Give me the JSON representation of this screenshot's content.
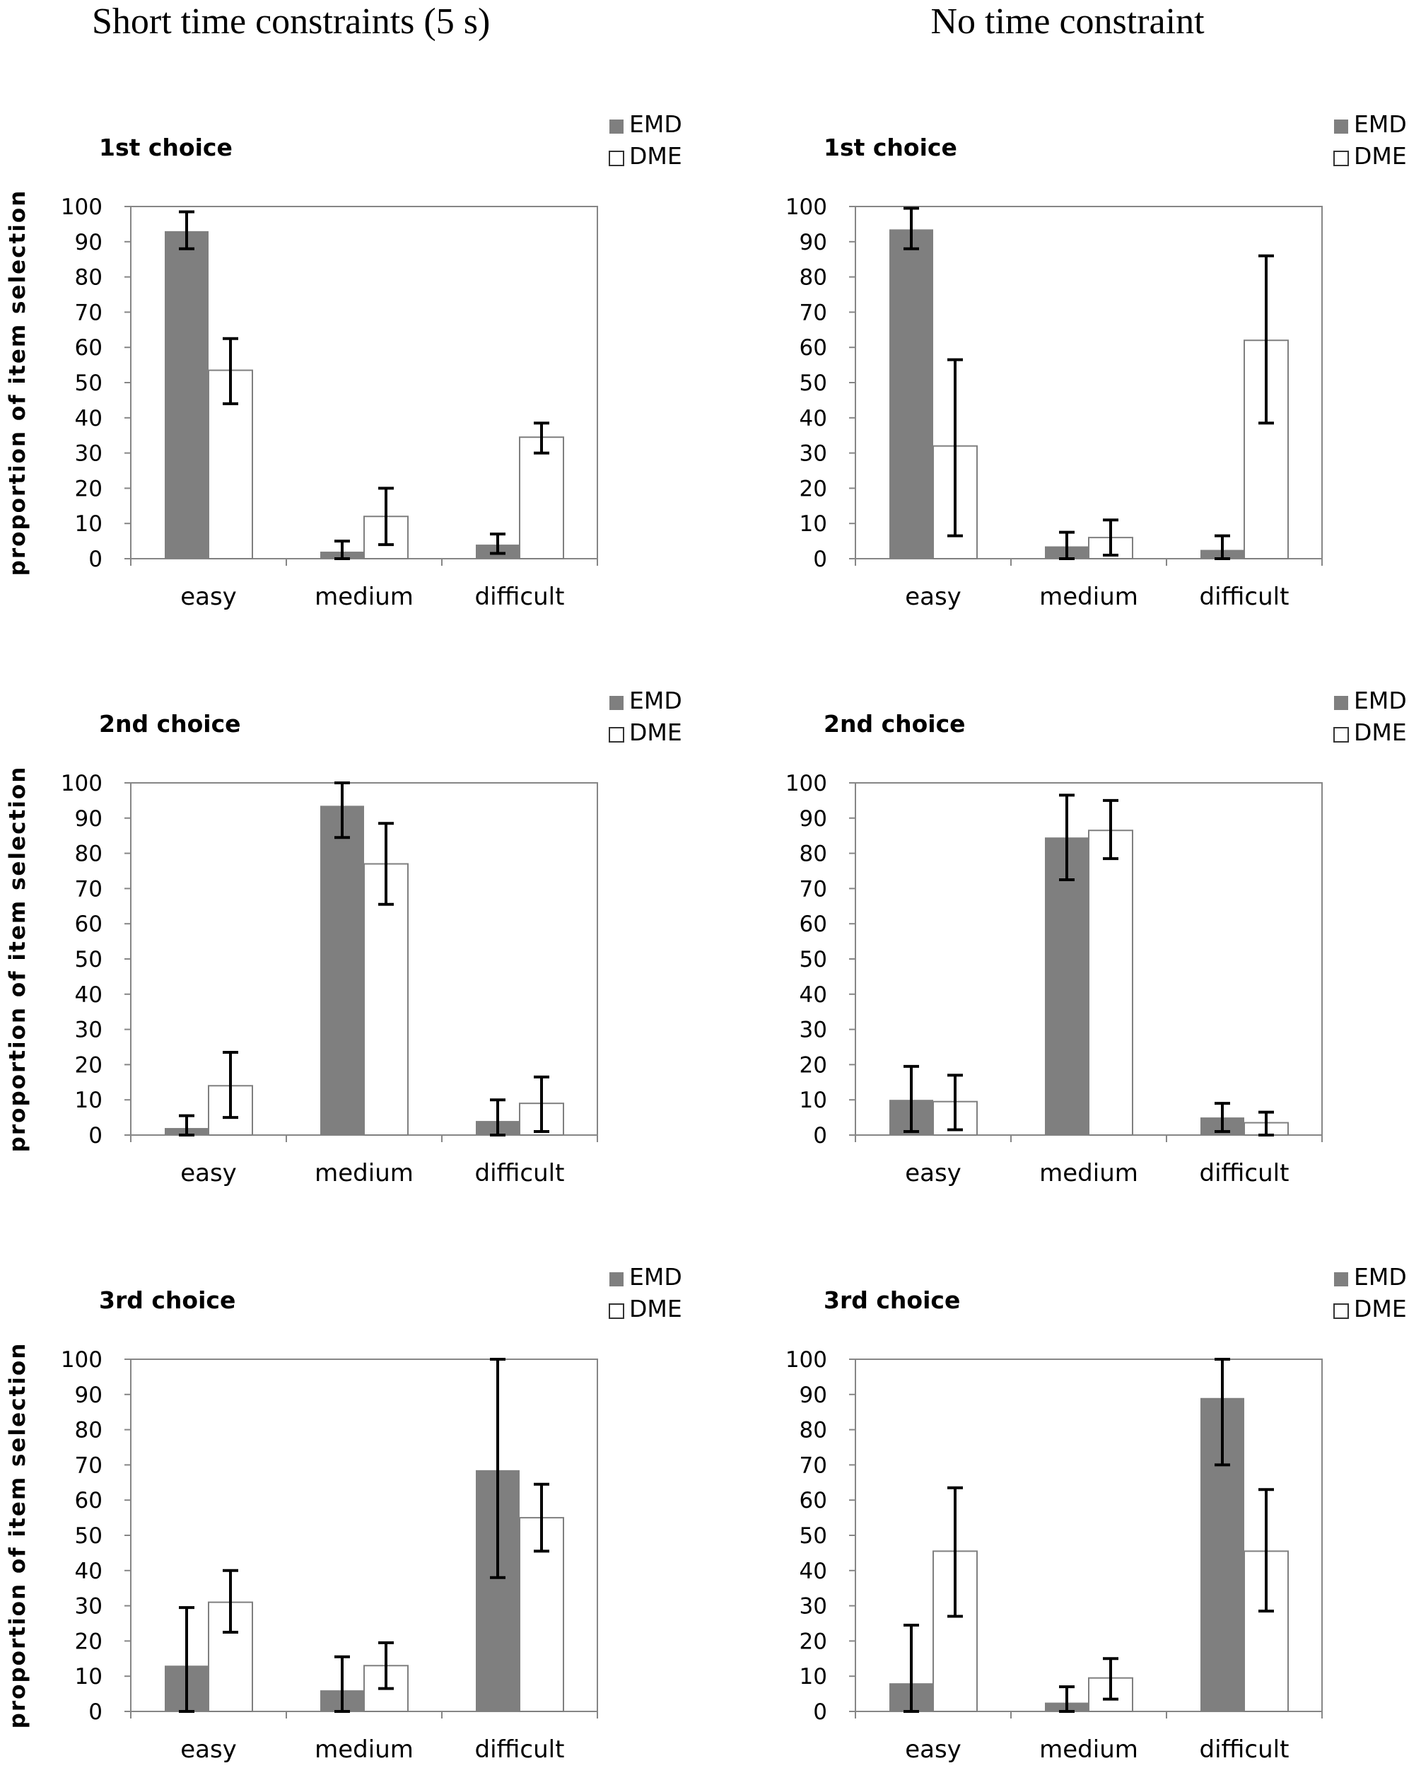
{
  "column_titles": [
    "Short time constraints (5 s)",
    "No time constraint"
  ],
  "colors": {
    "emd": "#7f7f7f",
    "dme": "#ffffff",
    "axis": "#868686",
    "error_bar": "#000000"
  },
  "chart_data": [
    {
      "type": "bar",
      "column": 0,
      "row": 0,
      "title": "1st choice",
      "categories": [
        "easy",
        "medium",
        "difficult"
      ],
      "ylabel": "proportion of item selection",
      "xlabel": "",
      "ylim": [
        0,
        100
      ],
      "yticks": [
        0,
        10,
        20,
        30,
        40,
        50,
        60,
        70,
        80,
        90,
        100
      ],
      "grid": false,
      "legend": "top-right",
      "series": [
        {
          "name": "EMD",
          "values": [
            93,
            2,
            4
          ],
          "err_low": [
            88,
            0,
            1.5
          ],
          "err_high": [
            98.5,
            5,
            7
          ]
        },
        {
          "name": "DME",
          "values": [
            53.5,
            12,
            34.5
          ],
          "err_low": [
            44,
            4,
            30
          ],
          "err_high": [
            62.5,
            20,
            38.5
          ]
        }
      ]
    },
    {
      "type": "bar",
      "column": 1,
      "row": 0,
      "title": "1st choice",
      "categories": [
        "easy",
        "medium",
        "difficult"
      ],
      "ylabel": "",
      "xlabel": "",
      "ylim": [
        0,
        100
      ],
      "yticks": [
        0,
        10,
        20,
        30,
        40,
        50,
        60,
        70,
        80,
        90,
        100
      ],
      "grid": false,
      "legend": "top-right",
      "series": [
        {
          "name": "EMD",
          "values": [
            93.5,
            3.5,
            2.5
          ],
          "err_low": [
            88,
            0,
            0
          ],
          "err_high": [
            99.5,
            7.5,
            6.5
          ]
        },
        {
          "name": "DME",
          "values": [
            32,
            6,
            62
          ],
          "err_low": [
            6.5,
            1,
            38.5
          ],
          "err_high": [
            56.5,
            11,
            86
          ]
        }
      ]
    },
    {
      "type": "bar",
      "column": 0,
      "row": 1,
      "title": "2nd choice",
      "categories": [
        "easy",
        "medium",
        "difficult"
      ],
      "ylabel": "proportion of item selection",
      "xlabel": "",
      "ylim": [
        0,
        100
      ],
      "yticks": [
        0,
        10,
        20,
        30,
        40,
        50,
        60,
        70,
        80,
        90,
        100
      ],
      "grid": false,
      "legend": "top-right",
      "series": [
        {
          "name": "EMD",
          "values": [
            2,
            93.5,
            4
          ],
          "err_low": [
            0,
            84.5,
            0
          ],
          "err_high": [
            5.5,
            100,
            10
          ]
        },
        {
          "name": "DME",
          "values": [
            14,
            77,
            9
          ],
          "err_low": [
            5,
            65.5,
            1
          ],
          "err_high": [
            23.5,
            88.5,
            16.5
          ]
        }
      ]
    },
    {
      "type": "bar",
      "column": 1,
      "row": 1,
      "title": "2nd choice",
      "categories": [
        "easy",
        "medium",
        "difficult"
      ],
      "ylabel": "",
      "xlabel": "",
      "ylim": [
        0,
        100
      ],
      "yticks": [
        0,
        10,
        20,
        30,
        40,
        50,
        60,
        70,
        80,
        90,
        100
      ],
      "grid": false,
      "legend": "top-right",
      "series": [
        {
          "name": "EMD",
          "values": [
            10,
            84.5,
            5
          ],
          "err_low": [
            1,
            72.5,
            1
          ],
          "err_high": [
            19.5,
            96.5,
            9
          ]
        },
        {
          "name": "DME",
          "values": [
            9.5,
            86.5,
            3.5
          ],
          "err_low": [
            1.5,
            78.5,
            0
          ],
          "err_high": [
            17,
            95,
            6.5
          ]
        }
      ]
    },
    {
      "type": "bar",
      "column": 0,
      "row": 2,
      "title": "3rd choice",
      "categories": [
        "easy",
        "medium",
        "difficult"
      ],
      "ylabel": "proportion of item selection",
      "xlabel": "",
      "ylim": [
        0,
        100
      ],
      "yticks": [
        0,
        10,
        20,
        30,
        40,
        50,
        60,
        70,
        80,
        90,
        100
      ],
      "grid": false,
      "legend": "top-right",
      "series": [
        {
          "name": "EMD",
          "values": [
            13,
            6,
            68.5
          ],
          "err_low": [
            0,
            0,
            38
          ],
          "err_high": [
            29.5,
            15.5,
            100
          ]
        },
        {
          "name": "DME",
          "values": [
            31,
            13,
            55
          ],
          "err_low": [
            22.5,
            6.5,
            45.5
          ],
          "err_high": [
            40,
            19.5,
            64.5
          ]
        }
      ]
    },
    {
      "type": "bar",
      "column": 1,
      "row": 2,
      "title": "3rd choice",
      "categories": [
        "easy",
        "medium",
        "difficult"
      ],
      "ylabel": "",
      "xlabel": "",
      "ylim": [
        0,
        100
      ],
      "yticks": [
        0,
        10,
        20,
        30,
        40,
        50,
        60,
        70,
        80,
        90,
        100
      ],
      "grid": false,
      "legend": "top-right",
      "series": [
        {
          "name": "EMD",
          "values": [
            8,
            2.5,
            89
          ],
          "err_low": [
            0,
            0,
            70
          ],
          "err_high": [
            24.5,
            7,
            100
          ]
        },
        {
          "name": "DME",
          "values": [
            45.5,
            9.5,
            45.5
          ],
          "err_low": [
            27,
            3.5,
            28.5
          ],
          "err_high": [
            63.5,
            15,
            63
          ]
        }
      ]
    }
  ]
}
